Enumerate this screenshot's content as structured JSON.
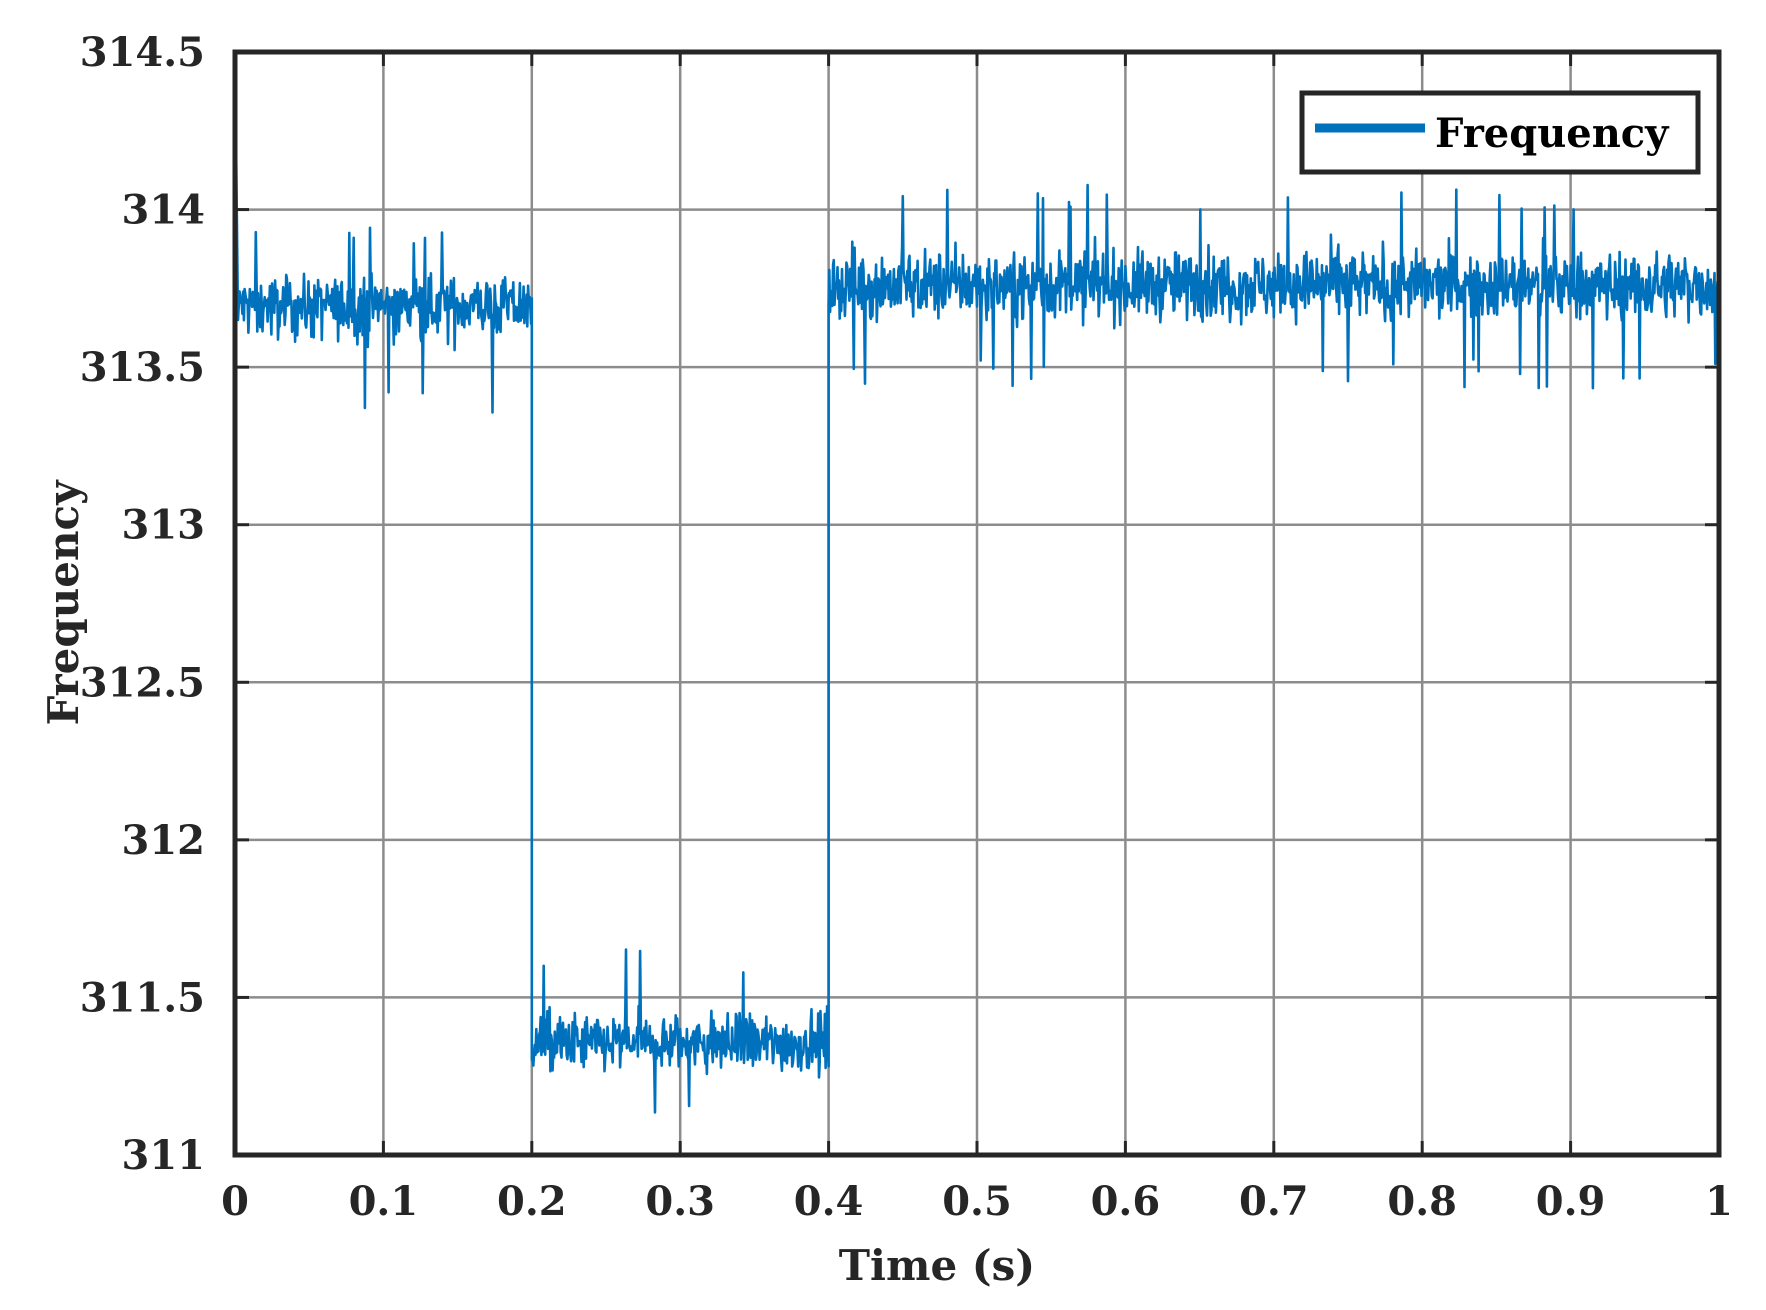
{
  "chart_data": {
    "type": "line",
    "xlabel": "Time (s)",
    "ylabel": "Frequency",
    "xlim": [
      0,
      1
    ],
    "ylim": [
      311,
      314.5
    ],
    "x_ticks": [
      0,
      0.1,
      0.2,
      0.3,
      0.4,
      0.5,
      0.6,
      0.7,
      0.8,
      0.9,
      1
    ],
    "x_tick_labels": [
      "0",
      "0.1",
      "0.2",
      "0.3",
      "0.4",
      "0.5",
      "0.6",
      "0.7",
      "0.8",
      "0.9",
      "1"
    ],
    "y_ticks": [
      311,
      311.5,
      312,
      312.5,
      313,
      313.5,
      314,
      314.5
    ],
    "y_tick_labels": [
      "311",
      "311.5",
      "312",
      "312.5",
      "313",
      "313.5",
      "314",
      "314.5"
    ],
    "grid": true,
    "legend": {
      "placement": "top-right",
      "entries": [
        "Frequency"
      ]
    },
    "series": [
      {
        "name": "Frequency",
        "color": "#0072bd",
        "segments": [
          {
            "x_start": 0.0,
            "x_end": 0.2,
            "mean": 313.7,
            "noise_min": 313.35,
            "noise_max": 313.95
          },
          {
            "x_start": 0.2,
            "x_end": 0.4,
            "mean": 311.35,
            "noise_min": 311.09,
            "noise_max": 311.66
          },
          {
            "x_start": 0.4,
            "x_end": 1.0,
            "mean": 313.76,
            "noise_min": 313.43,
            "noise_max": 314.09
          }
        ],
        "initial_spike": {
          "x": 0.0,
          "y": 314.5
        }
      }
    ]
  }
}
